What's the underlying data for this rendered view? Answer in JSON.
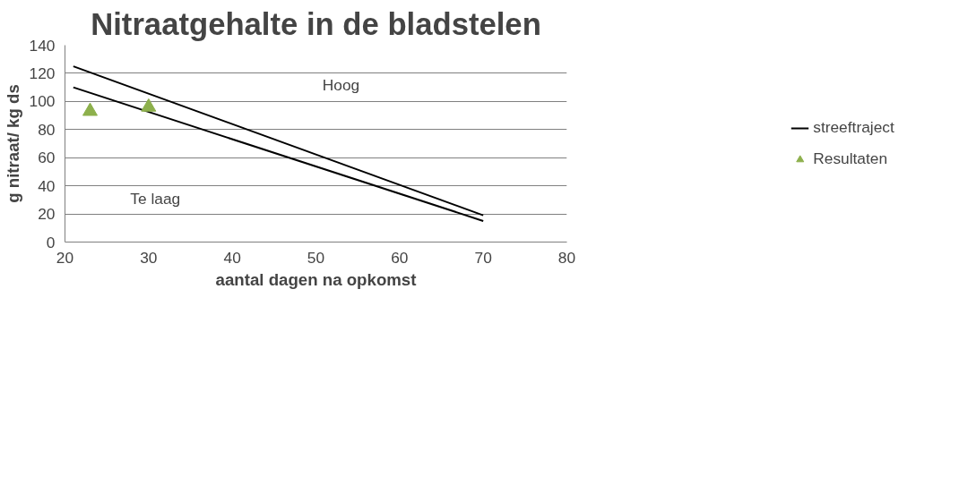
{
  "chart_data": {
    "type": "line",
    "title": "Nitraatgehalte in de bladstelen",
    "xlabel": "aantal dagen na opkomst",
    "ylabel": "g nitraat/ kg ds",
    "xlim": [
      20,
      80
    ],
    "xticks": [
      20,
      30,
      40,
      50,
      60,
      70,
      80
    ],
    "ylim": [
      0,
      140
    ],
    "yticks": [
      0,
      20,
      40,
      60,
      80,
      100,
      120,
      140
    ],
    "grid": "y",
    "legend": "right",
    "line_style": "solid",
    "series": [
      {
        "name": "streeftraject",
        "color": "#000000",
        "x": [
          21,
          70
        ],
        "values": [
          125,
          19
        ]
      },
      {
        "color": "#000000",
        "x": [
          21,
          70
        ],
        "values": [
          110,
          15
        ]
      },
      {
        "name": "Resultaten",
        "type": "scatter",
        "marker": "triangle",
        "color": "#8db04c",
        "x": [
          23,
          30
        ],
        "values": [
          93,
          96
        ]
      }
    ],
    "annotations": [
      "Hoog",
      "Te laag"
    ]
  }
}
